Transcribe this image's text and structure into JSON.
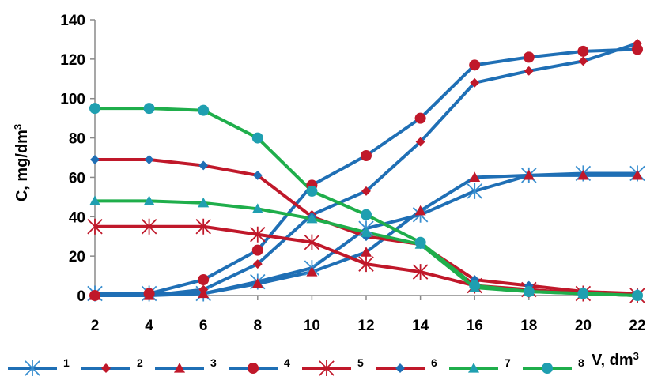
{
  "chart_data": {
    "type": "line",
    "x": [
      2,
      4,
      6,
      8,
      10,
      12,
      14,
      16,
      18,
      20,
      22
    ],
    "xlabel": "V, dm",
    "xlabel_superscript": "3",
    "ylabel": "C, mg/dm",
    "ylabel_superscript": "3",
    "xlim": [
      2,
      22
    ],
    "ylim": [
      0,
      140
    ],
    "xticks": [
      2,
      4,
      6,
      8,
      10,
      12,
      14,
      16,
      18,
      20,
      22
    ],
    "yticks": [
      0,
      20,
      40,
      60,
      80,
      100,
      120,
      140
    ],
    "grid": false,
    "legend_position": "bottom",
    "series": [
      {
        "name": "1",
        "color": "#1f6fb5",
        "marker": "asterisk",
        "marker_color": "#3a8fd0",
        "values": [
          1,
          1,
          1,
          7,
          14,
          34,
          41,
          53,
          61,
          62,
          62
        ]
      },
      {
        "name": "2",
        "color": "#1f6fb5",
        "marker": "diamond",
        "marker_color": "#c0182a",
        "values": [
          0,
          0,
          3,
          16,
          41,
          53,
          78,
          108,
          114,
          119,
          128
        ]
      },
      {
        "name": "3",
        "color": "#1f6fb5",
        "marker": "triangle",
        "marker_color": "#c0182a",
        "values": [
          0,
          0,
          1,
          6,
          12,
          22,
          43,
          60,
          61,
          61,
          61
        ]
      },
      {
        "name": "4",
        "color": "#1f6fb5",
        "marker": "circle",
        "marker_color": "#c0182a",
        "values": [
          0,
          1,
          8,
          23,
          56,
          71,
          90,
          117,
          121,
          124,
          125
        ]
      },
      {
        "name": "5",
        "color": "#c0182a",
        "marker": "asterisk",
        "marker_color": "#c0182a",
        "values": [
          35,
          35,
          35,
          31,
          27,
          16,
          12,
          5,
          3,
          1,
          0
        ]
      },
      {
        "name": "6",
        "color": "#c0182a",
        "marker": "diamond",
        "marker_color": "#1f6fb5",
        "values": [
          69,
          69,
          66,
          61,
          40,
          30,
          26,
          8,
          5,
          2,
          1
        ]
      },
      {
        "name": "7",
        "color": "#1fae4b",
        "marker": "triangle",
        "marker_color": "#1f9fb0",
        "values": [
          48,
          48,
          47,
          44,
          39,
          32,
          26,
          4,
          2,
          1,
          0
        ]
      },
      {
        "name": "8",
        "color": "#1fae4b",
        "marker": "circle",
        "marker_color": "#1f9fb0",
        "values": [
          95,
          95,
          94,
          80,
          53,
          41,
          27,
          5,
          2,
          1,
          0
        ]
      }
    ]
  }
}
